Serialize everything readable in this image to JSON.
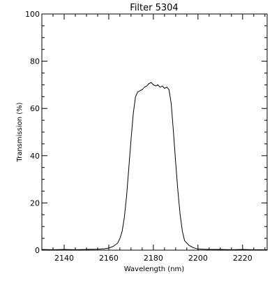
{
  "chart_data": {
    "type": "line",
    "title": "Filter 5304",
    "xlabel": "Wavelength (nm)",
    "ylabel": "Transmission (%)",
    "xlim": [
      2130,
      2231
    ],
    "ylim": [
      0,
      100
    ],
    "grid": false,
    "legend": "none",
    "x_ticks": [
      2140,
      2160,
      2180,
      2200,
      2220
    ],
    "y_ticks": [
      0,
      20,
      40,
      60,
      80,
      100
    ],
    "line_color": "#000000",
    "series": [
      {
        "x": [
          2130,
          2135,
          2140,
          2145,
          2150,
          2155,
          2158,
          2160,
          2162,
          2164,
          2165,
          2166,
          2167,
          2168,
          2169,
          2170,
          2171,
          2172,
          2173,
          2174,
          2175,
          2176,
          2177,
          2178,
          2179,
          2180,
          2181,
          2182,
          2183,
          2184,
          2185,
          2186,
          2187,
          2188,
          2189,
          2190,
          2191,
          2192,
          2193,
          2194,
          2196,
          2198,
          2200,
          2205,
          2210,
          2215,
          2220,
          2225,
          2231
        ],
        "y": [
          0.3,
          0.2,
          0.3,
          0.2,
          0.3,
          0.4,
          0.6,
          0.9,
          1.6,
          3,
          5,
          8,
          14,
          23,
          35,
          47,
          58,
          65,
          67,
          67.5,
          68,
          69,
          69.5,
          70.5,
          71,
          70,
          69.5,
          70,
          69,
          69.5,
          68.5,
          69,
          68,
          62,
          50,
          37,
          25,
          15,
          8,
          4,
          2,
          1,
          0.5,
          0.3,
          0.3,
          0.2,
          0.3,
          0.2,
          0.2
        ]
      }
    ]
  }
}
